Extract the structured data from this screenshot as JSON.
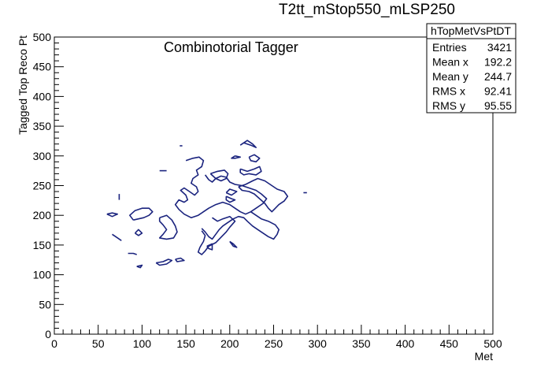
{
  "chart_data": {
    "type": "contour",
    "title": "T2tt_mStop550_mLSP250",
    "annotation": "Combinotorial Tagger",
    "xlabel": "Met",
    "ylabel": "Tagged Top Reco Pt",
    "xlim": [
      0,
      500
    ],
    "ylim": [
      0,
      500
    ],
    "x_ticks": [
      "0",
      "50",
      "100",
      "150",
      "200",
      "250",
      "300",
      "350",
      "400",
      "450",
      "500"
    ],
    "y_ticks": [
      "0",
      "50",
      "100",
      "150",
      "200",
      "250",
      "300",
      "350",
      "400",
      "450",
      "500"
    ],
    "grid": false,
    "line_color": "#1a237e",
    "stats_box": {
      "name": "hTopMetVsPtDT",
      "rows": [
        {
          "label": "Entries",
          "value": "3421"
        },
        {
          "label": "Mean x",
          "value": "192.2"
        },
        {
          "label": "Mean y",
          "value": "244.7"
        },
        {
          "label": "RMS x",
          "value": "92.41"
        },
        {
          "label": "RMS y",
          "value": "95.55"
        }
      ]
    },
    "contours": [
      [
        [
          212,
          318
        ],
        [
          220,
          326
        ],
        [
          226,
          320
        ],
        [
          230,
          314
        ],
        [
          224,
          318
        ],
        [
          216,
          322
        ],
        [
          212,
          318
        ]
      ],
      [
        [
          120,
          275
        ],
        [
          128,
          275
        ]
      ],
      [
        [
          143,
          317
        ],
        [
          146,
          317
        ]
      ],
      [
        [
          150,
          292
        ],
        [
          158,
          296
        ],
        [
          165,
          298
        ],
        [
          170,
          292
        ],
        [
          168,
          282
        ],
        [
          162,
          276
        ],
        [
          164,
          268
        ],
        [
          158,
          262
        ],
        [
          156,
          254
        ],
        [
          162,
          248
        ],
        [
          164,
          240
        ],
        [
          160,
          234
        ],
        [
          154,
          240
        ],
        [
          148,
          246
        ],
        [
          144,
          242
        ],
        [
          150,
          234
        ],
        [
          152,
          226
        ],
        [
          148,
          222
        ],
        [
          142,
          226
        ],
        [
          138,
          218
        ],
        [
          142,
          210
        ],
        [
          148,
          202
        ],
        [
          156,
          196
        ],
        [
          164,
          200
        ],
        [
          170,
          206
        ],
        [
          176,
          212
        ],
        [
          184,
          218
        ],
        [
          192,
          222
        ],
        [
          200,
          218
        ],
        [
          206,
          212
        ],
        [
          212,
          206
        ],
        [
          218,
          202
        ],
        [
          224,
          206
        ],
        [
          230,
          212
        ],
        [
          238,
          220
        ],
        [
          242,
          228
        ],
        [
          236,
          236
        ],
        [
          230,
          242
        ],
        [
          222,
          246
        ],
        [
          214,
          250
        ],
        [
          206,
          252
        ],
        [
          200,
          256
        ],
        [
          196,
          264
        ],
        [
          190,
          266
        ],
        [
          184,
          262
        ],
        [
          180,
          256
        ],
        [
          176,
          260
        ],
        [
          172,
          268
        ]
      ],
      [
        [
          178,
          270
        ],
        [
          186,
          274
        ],
        [
          194,
          276
        ],
        [
          198,
          270
        ],
        [
          196,
          262
        ],
        [
          190,
          258
        ],
        [
          184,
          262
        ],
        [
          178,
          270
        ]
      ],
      [
        [
          212,
          278
        ],
        [
          220,
          274
        ],
        [
          228,
          278
        ],
        [
          234,
          282
        ],
        [
          236,
          274
        ],
        [
          230,
          268
        ],
        [
          222,
          270
        ],
        [
          216,
          268
        ],
        [
          212,
          272
        ],
        [
          212,
          278
        ]
      ],
      [
        [
          210,
          248
        ],
        [
          218,
          252
        ],
        [
          226,
          258
        ],
        [
          232,
          262
        ],
        [
          240,
          258
        ],
        [
          248,
          250
        ],
        [
          254,
          244
        ],
        [
          262,
          240
        ],
        [
          266,
          232
        ],
        [
          262,
          224
        ],
        [
          256,
          218
        ],
        [
          252,
          212
        ],
        [
          248,
          206
        ],
        [
          244,
          212
        ],
        [
          240,
          220
        ],
        [
          234,
          228
        ],
        [
          228,
          236
        ],
        [
          222,
          240
        ],
        [
          214,
          242
        ],
        [
          210,
          248
        ]
      ],
      [
        [
          74,
          236
        ],
        [
          74,
          226
        ]
      ],
      [
        [
          90,
          192
        ],
        [
          86,
          200
        ],
        [
          92,
          208
        ],
        [
          100,
          212
        ],
        [
          108,
          212
        ],
        [
          112,
          206
        ],
        [
          108,
          200
        ],
        [
          102,
          196
        ],
        [
          96,
          194
        ],
        [
          90,
          192
        ]
      ],
      [
        [
          60,
          202
        ],
        [
          66,
          204
        ],
        [
          72,
          202
        ],
        [
          66,
          198
        ],
        [
          60,
          202
        ]
      ],
      [
        [
          66,
          168
        ],
        [
          72,
          162
        ],
        [
          76,
          158
        ],
        [
          70,
          164
        ],
        [
          66,
          168
        ]
      ],
      [
        [
          92,
          170
        ],
        [
          96,
          176
        ],
        [
          100,
          170
        ],
        [
          96,
          166
        ],
        [
          92,
          170
        ]
      ],
      [
        [
          120,
          196
        ],
        [
          128,
          200
        ],
        [
          134,
          192
        ],
        [
          138,
          182
        ],
        [
          140,
          172
        ],
        [
          136,
          162
        ],
        [
          128,
          160
        ],
        [
          120,
          162
        ],
        [
          124,
          168
        ],
        [
          128,
          176
        ],
        [
          124,
          184
        ],
        [
          120,
          190
        ],
        [
          120,
          196
        ]
      ],
      [
        [
          168,
          178
        ],
        [
          172,
          172
        ],
        [
          176,
          164
        ],
        [
          180,
          160
        ],
        [
          184,
          168
        ],
        [
          188,
          176
        ],
        [
          192,
          182
        ],
        [
          198,
          188
        ],
        [
          204,
          194
        ],
        [
          210,
          198
        ],
        [
          216,
          196
        ],
        [
          220,
          190
        ],
        [
          226,
          182
        ],
        [
          232,
          176
        ],
        [
          238,
          170
        ],
        [
          244,
          164
        ],
        [
          250,
          160
        ],
        [
          254,
          168
        ],
        [
          256,
          176
        ],
        [
          252,
          184
        ],
        [
          244,
          190
        ],
        [
          236,
          194
        ],
        [
          230,
          200
        ],
        [
          224,
          206
        ]
      ],
      [
        [
          180,
          196
        ],
        [
          186,
          190
        ],
        [
          192,
          194
        ],
        [
          200,
          198
        ],
        [
          206,
          190
        ],
        [
          200,
          180
        ],
        [
          196,
          172
        ],
        [
          192,
          166
        ],
        [
          188,
          160
        ],
        [
          184,
          154
        ],
        [
          176,
          148
        ],
        [
          172,
          140
        ],
        [
          168,
          134
        ],
        [
          164,
          138
        ],
        [
          166,
          146
        ],
        [
          170,
          156
        ],
        [
          172,
          166
        ],
        [
          168,
          174
        ]
      ],
      [
        [
          200,
          156
        ],
        [
          204,
          148
        ],
        [
          208,
          146
        ],
        [
          204,
          152
        ],
        [
          200,
          156
        ]
      ],
      [
        [
          196,
          238
        ],
        [
          202,
          234
        ],
        [
          208,
          240
        ],
        [
          200,
          244
        ],
        [
          196,
          238
        ]
      ],
      [
        [
          196,
          232
        ],
        [
          202,
          228
        ],
        [
          206,
          226
        ],
        [
          200,
          222
        ],
        [
          196,
          226
        ],
        [
          196,
          232
        ]
      ],
      [
        [
          84,
          136
        ],
        [
          90,
          136
        ],
        [
          94,
          134
        ]
      ],
      [
        [
          94,
          114
        ],
        [
          100,
          116
        ],
        [
          98,
          112
        ],
        [
          94,
          114
        ]
      ],
      [
        [
          116,
          120
        ],
        [
          124,
          122
        ],
        [
          130,
          126
        ],
        [
          134,
          124
        ],
        [
          128,
          118
        ],
        [
          120,
          116
        ],
        [
          116,
          120
        ]
      ],
      [
        [
          138,
          126
        ],
        [
          144,
          128
        ],
        [
          148,
          124
        ],
        [
          140,
          122
        ],
        [
          138,
          126
        ]
      ],
      [
        [
          174,
          148
        ],
        [
          180,
          152
        ],
        [
          180,
          142
        ],
        [
          176,
          144
        ],
        [
          174,
          148
        ]
      ],
      [
        [
          222,
          298
        ],
        [
          228,
          302
        ],
        [
          234,
          296
        ],
        [
          230,
          290
        ],
        [
          224,
          292
        ],
        [
          222,
          298
        ]
      ],
      [
        [
          206,
          300
        ],
        [
          212,
          298
        ],
        [
          206,
          296
        ],
        [
          202,
          296
        ],
        [
          206,
          300
        ]
      ],
      [
        [
          284,
          238
        ],
        [
          288,
          238
        ]
      ]
    ]
  }
}
